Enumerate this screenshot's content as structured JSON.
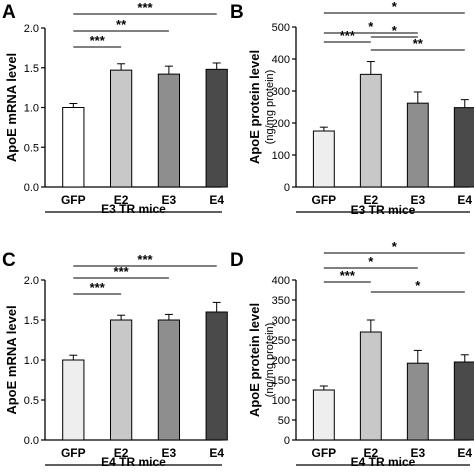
{
  "chart_data": [
    {
      "type": "bar",
      "panel_label": "A",
      "ylabel": "ApoE mRNA level",
      "ylabel2": "",
      "group_label": "E3 TR mice",
      "categories": [
        "GFP",
        "E2",
        "E3",
        "E4"
      ],
      "values": [
        1.0,
        1.47,
        1.42,
        1.48
      ],
      "errors": [
        0.05,
        0.08,
        0.1,
        0.08
      ],
      "bar_colors": [
        "#ffffff",
        "#c8c8c8",
        "#8e8e8e",
        "#4a4a4a"
      ],
      "ylim": [
        0,
        2.0
      ],
      "yticks": [
        0,
        0.5,
        1.0,
        1.5,
        2.0
      ],
      "ytick_labels": [
        "0.0",
        "0.5",
        "1.0",
        "1.5",
        "2.0"
      ],
      "significance": [
        {
          "from": "GFP",
          "to": "E4",
          "label": "***"
        },
        {
          "from": "GFP",
          "to": "E3",
          "label": "**"
        },
        {
          "from": "GFP",
          "to": "E2",
          "label": "***"
        }
      ]
    },
    {
      "type": "bar",
      "panel_label": "B",
      "ylabel": "ApoE protein level",
      "ylabel2": "(ng/mg protein)",
      "group_label": "E3 TR mice",
      "categories": [
        "GFP",
        "E2",
        "E3",
        "E4"
      ],
      "values": [
        175,
        352,
        262,
        248
      ],
      "errors": [
        12,
        40,
        35,
        25
      ],
      "bar_colors": [
        "#eeeeee",
        "#c8c8c8",
        "#8e8e8e",
        "#4a4a4a"
      ],
      "ylim": [
        0,
        500
      ],
      "yticks": [
        0,
        100,
        200,
        300,
        400,
        500
      ],
      "ytick_labels": [
        "0",
        "100",
        "200",
        "300",
        "400",
        "500"
      ],
      "significance": [
        {
          "from": "GFP",
          "to": "E4",
          "label": "*"
        },
        {
          "from": "GFP",
          "to": "E3",
          "label": "*"
        },
        {
          "from": "GFP",
          "to": "E2",
          "label": "***"
        },
        {
          "from": "E2",
          "to": "E3",
          "label": "*"
        },
        {
          "from": "E2",
          "to": "E4",
          "label": "**"
        }
      ]
    },
    {
      "type": "bar",
      "panel_label": "C",
      "ylabel": "ApoE mRNA level",
      "ylabel2": "",
      "group_label": "E4 TR mice",
      "categories": [
        "GFP",
        "E2",
        "E3",
        "E4"
      ],
      "values": [
        1.0,
        1.5,
        1.5,
        1.6
      ],
      "errors": [
        0.06,
        0.06,
        0.07,
        0.12
      ],
      "bar_colors": [
        "#eeeeee",
        "#c8c8c8",
        "#8e8e8e",
        "#4a4a4a"
      ],
      "ylim": [
        0,
        2.0
      ],
      "yticks": [
        0,
        0.5,
        1.0,
        1.5,
        2.0
      ],
      "ytick_labels": [
        "0.0",
        "0.5",
        "1.0",
        "1.5",
        "2.0"
      ],
      "significance": [
        {
          "from": "GFP",
          "to": "E4",
          "label": "***"
        },
        {
          "from": "GFP",
          "to": "E3",
          "label": "***"
        },
        {
          "from": "GFP",
          "to": "E2",
          "label": "***"
        }
      ]
    },
    {
      "type": "bar",
      "panel_label": "D",
      "ylabel": "ApoE protein level",
      "ylabel2": "(ng/mg protein)",
      "group_label": "E4 TR mice",
      "categories": [
        "GFP",
        "E2",
        "E3",
        "E4"
      ],
      "values": [
        125,
        270,
        192,
        195
      ],
      "errors": [
        10,
        30,
        32,
        18
      ],
      "bar_colors": [
        "#eeeeee",
        "#c8c8c8",
        "#8e8e8e",
        "#4a4a4a"
      ],
      "ylim": [
        0,
        400
      ],
      "yticks": [
        0,
        50,
        100,
        150,
        200,
        250,
        300,
        350,
        400
      ],
      "ytick_labels": [
        "0",
        "50",
        "100",
        "150",
        "200",
        "250",
        "300",
        "350",
        "400"
      ],
      "significance": [
        {
          "from": "GFP",
          "to": "E4",
          "label": "*"
        },
        {
          "from": "GFP",
          "to": "E3",
          "label": "*"
        },
        {
          "from": "GFP",
          "to": "E2",
          "label": "***"
        },
        {
          "from": "E2",
          "to": "E4",
          "label": "*"
        }
      ]
    }
  ]
}
